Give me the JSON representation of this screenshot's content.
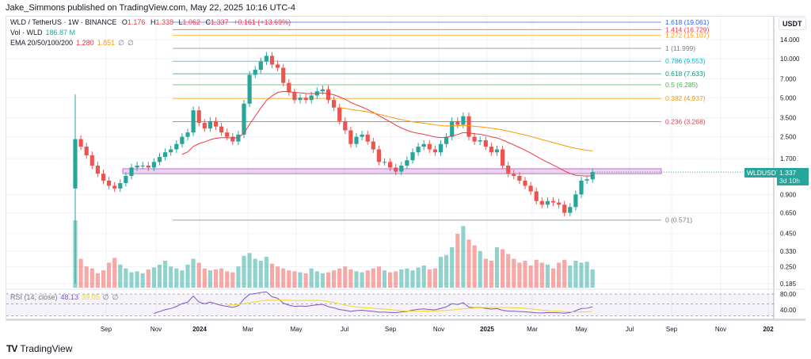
{
  "publisher": "Jake_Simmons published on TradingView.com, May 22, 2025 10:16 UTC-4",
  "legend": {
    "symbol": "WLD / TetherUS · 1W · BINANCE",
    "o_label": "O",
    "o": "1.176",
    "h_label": "H",
    "h": "1.338",
    "l_label": "L",
    "l": "1.062",
    "c_label": "C",
    "c": "1.337",
    "change": "+0.161 (+13.69%)",
    "vol_label": "Vol · WLD",
    "vol": "186.87 M",
    "ema_label": "EMA 20/50/100/200",
    "ema20": "1.280",
    "ema50": "1.851",
    "ema100": "∅",
    "ema200": "∅",
    "rsi_label": "RSI (14, close)",
    "rsi": "48.13",
    "rsi_ma": "39.05",
    "rsi_x1": "∅",
    "rsi_x2": "∅"
  },
  "price_axis": {
    "unit": "USDT",
    "ticks": [
      "14.000",
      "10.000",
      "7.000",
      "5.000",
      "3.500",
      "2.500",
      "1.700",
      "0.900",
      "0.650",
      "0.450",
      "0.330",
      "0.250",
      "0.185"
    ],
    "tick_values": [
      14,
      10,
      7,
      5,
      3.5,
      2.5,
      1.7,
      0.9,
      0.65,
      0.45,
      0.33,
      0.25,
      0.185
    ]
  },
  "rsi_axis": {
    "ticks": [
      "80.00",
      "40.00"
    ]
  },
  "last_price": {
    "symbol": "WLDUSDT",
    "price": "1.337",
    "countdown": "3d 10h"
  },
  "time_axis": [
    "Sep",
    "Nov",
    "2024",
    "Mar",
    "May",
    "Jul",
    "Sep",
    "Nov",
    "2025",
    "Mar",
    "May",
    "Jul",
    "Sep",
    "Nov",
    "202"
  ],
  "fib_levels": [
    {
      "label": "1.618 (19.061)",
      "value": 19.061,
      "color": "#2962ff"
    },
    {
      "label": "1.414 (16.729)",
      "value": 16.729,
      "color": "#f23645"
    },
    {
      "label": "1.272 (15.107)",
      "value": 15.107,
      "color": "#ff9800"
    },
    {
      "label": "1 (11.999)",
      "value": 11.999,
      "color": "#787b86"
    },
    {
      "label": "0.786 (9.553)",
      "value": 9.553,
      "color": "#00bcd4"
    },
    {
      "label": "0.618 (7.633)",
      "value": 7.633,
      "color": "#089981"
    },
    {
      "label": "0.5 (6.285)",
      "value": 6.285,
      "color": "#4caf50"
    },
    {
      "label": "0.382 (4.937)",
      "value": 4.937,
      "color": "#ff9800"
    },
    {
      "label": "0.236 (3.268)",
      "value": 3.268,
      "color": "#f23645"
    },
    {
      "label": "0 (0.571)",
      "value": 0.571,
      "color": "#787b86"
    }
  ],
  "zone": {
    "low": 1.3,
    "high": 1.42,
    "color": "#9c27b0"
  },
  "colors": {
    "up": "#26a69a",
    "down": "#ef5350",
    "ema20": "#f23645",
    "ema50": "#ff9800",
    "rsi": "#7e57c2",
    "rsi_ma": "#f5d81c"
  },
  "footer": {
    "brand": "TradingView"
  },
  "chart_data": {
    "type": "candlestick",
    "title": "WLD / TetherUS · 1W · BINANCE",
    "scale": "log",
    "closes": [
      2.4,
      2.1,
      1.8,
      1.5,
      1.3,
      1.15,
      1.05,
      1.0,
      1.1,
      1.25,
      1.45,
      1.5,
      1.5,
      1.45,
      1.6,
      1.75,
      1.9,
      2.0,
      2.2,
      2.5,
      2.7,
      4.0,
      3.2,
      2.9,
      3.3,
      3.0,
      2.7,
      2.5,
      2.3,
      2.6,
      4.5,
      7.5,
      8.2,
      9.5,
      10.5,
      9.0,
      8.5,
      6.5,
      5.5,
      4.8,
      5.0,
      4.8,
      5.2,
      5.6,
      5.8,
      4.8,
      4.2,
      3.3,
      2.8,
      2.2,
      2.5,
      2.6,
      2.3,
      2.0,
      1.6,
      1.6,
      1.45,
      1.35,
      1.5,
      1.65,
      1.9,
      2.1,
      2.2,
      2.0,
      1.9,
      2.2,
      2.5,
      3.3,
      3.1,
      3.6,
      2.5,
      2.3,
      2.35,
      2.1,
      1.9,
      2.0,
      1.5,
      1.3,
      1.25,
      1.15,
      1.05,
      0.95,
      0.8,
      0.75,
      0.8,
      0.78,
      0.75,
      0.65,
      0.72,
      0.9,
      1.15,
      1.176,
      1.337
    ],
    "first_open": 1.0,
    "first_high": 5.3,
    "volumes": [
      700,
      300,
      220,
      200,
      150,
      180,
      260,
      310,
      240,
      200,
      160,
      170,
      150,
      190,
      210,
      240,
      280,
      220,
      200,
      180,
      240,
      300,
      260,
      200,
      180,
      190,
      200,
      170,
      160,
      220,
      330,
      360,
      300,
      280,
      320,
      250,
      220,
      200,
      180,
      170,
      160,
      150,
      200,
      170,
      150,
      160,
      180,
      200,
      220,
      190,
      170,
      160,
      180,
      200,
      220,
      180,
      160,
      170,
      190,
      200,
      180,
      210,
      230,
      190,
      200,
      320,
      340,
      420,
      560,
      640,
      500,
      440,
      380,
      300,
      280,
      420,
      400,
      350,
      300,
      260,
      280,
      230,
      290,
      260,
      240,
      200,
      260,
      290,
      230,
      280,
      260,
      270,
      190
    ]
  }
}
